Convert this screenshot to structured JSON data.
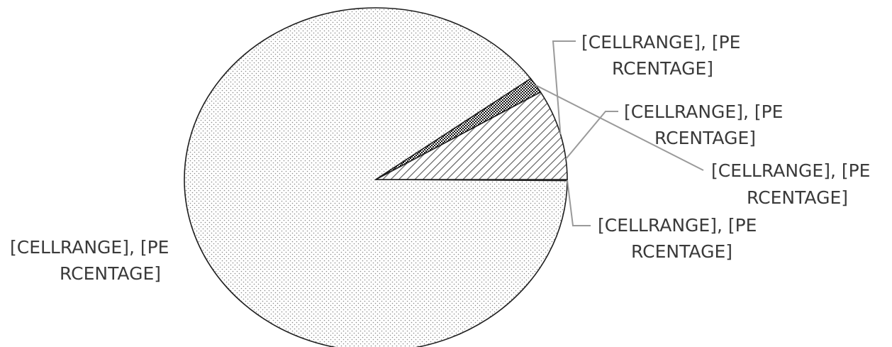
{
  "chart_data": {
    "type": "pie",
    "title": "",
    "slices": [
      {
        "label_line1": "[CELLRANGE], [PE",
        "label_line2": "RCENTAGE]",
        "value": 0.1,
        "fill": "dots"
      },
      {
        "label_line1": "[CELLRANGE], [PE",
        "label_line2": "RCENTAGE]",
        "value": 89.9,
        "fill": "fine-dots"
      },
      {
        "label_line1": "[CELLRANGE], [PE",
        "label_line2": "RCENTAGE]",
        "value": 1.5,
        "fill": "checker"
      },
      {
        "label_line1": "[CELLRANGE], [PE",
        "label_line2": "RCENTAGE]",
        "value": 8.5,
        "fill": "diagonal-hatch"
      }
    ],
    "legend": "none",
    "colors": {
      "outline": "#1e1e1e",
      "text": "#3a3a3a",
      "leader": "#9a9a9a",
      "thin-slice": "#2b4a78"
    }
  }
}
